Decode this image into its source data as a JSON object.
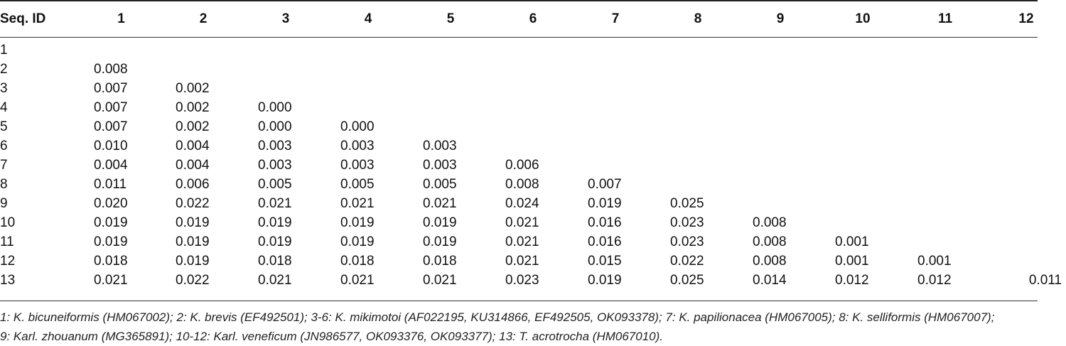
{
  "table": {
    "header": [
      "Seq. ID",
      "1",
      "2",
      "3",
      "4",
      "5",
      "6",
      "7",
      "8",
      "9",
      "10",
      "11",
      "12"
    ],
    "rows": [
      {
        "id": "1",
        "values": []
      },
      {
        "id": "2",
        "values": [
          "0.008"
        ]
      },
      {
        "id": "3",
        "values": [
          "0.007",
          "0.002"
        ]
      },
      {
        "id": "4",
        "values": [
          "0.007",
          "0.002",
          "0.000"
        ]
      },
      {
        "id": "5",
        "values": [
          "0.007",
          "0.002",
          "0.000",
          "0.000"
        ]
      },
      {
        "id": "6",
        "values": [
          "0.010",
          "0.004",
          "0.003",
          "0.003",
          "0.003"
        ]
      },
      {
        "id": "7",
        "values": [
          "0.004",
          "0.004",
          "0.003",
          "0.003",
          "0.003",
          "0.006"
        ]
      },
      {
        "id": "8",
        "values": [
          "0.011",
          "0.006",
          "0.005",
          "0.005",
          "0.005",
          "0.008",
          "0.007"
        ]
      },
      {
        "id": "9",
        "values": [
          "0.020",
          "0.022",
          "0.021",
          "0.021",
          "0.021",
          "0.024",
          "0.019",
          "0.025"
        ]
      },
      {
        "id": "10",
        "values": [
          "0.019",
          "0.019",
          "0.019",
          "0.019",
          "0.019",
          "0.021",
          "0.016",
          "0.023",
          "0.008"
        ]
      },
      {
        "id": "11",
        "values": [
          "0.019",
          "0.019",
          "0.019",
          "0.019",
          "0.019",
          "0.021",
          "0.016",
          "0.023",
          "0.008",
          "0.001"
        ]
      },
      {
        "id": "12",
        "values": [
          "0.018",
          "0.019",
          "0.018",
          "0.018",
          "0.018",
          "0.021",
          "0.015",
          "0.022",
          "0.008",
          "0.001",
          "0.001"
        ]
      },
      {
        "id": "13",
        "values": [
          "0.021",
          "0.022",
          "0.021",
          "0.021",
          "0.021",
          "0.023",
          "0.019",
          "0.025",
          "0.014",
          "0.012",
          "0.012",
          "0.011"
        ]
      }
    ]
  },
  "footnote": {
    "line1": "1: K. bicuneiformis (HM067002); 2: K. brevis (EF492501); 3-6: K. mikimotoi (AF022195, KU314866, EF492505, OK093378); 7: K. papilionacea (HM067005); 8: K. selliformis (HM067007);",
    "line2": "9: Karl. zhouanum (MG365891); 10-12: Karl. veneficum (JN986577, OK093376, OK093377); 13: T. acrotrocha (HM067010)."
  }
}
